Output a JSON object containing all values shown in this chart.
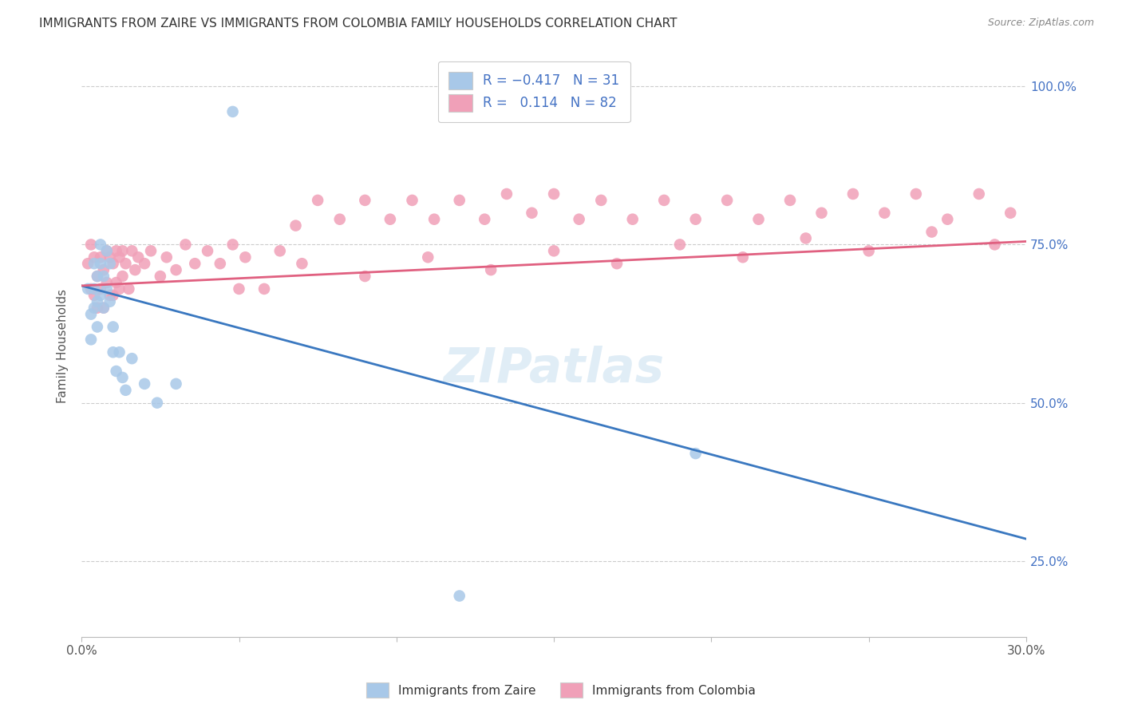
{
  "title": "IMMIGRANTS FROM ZAIRE VS IMMIGRANTS FROM COLOMBIA FAMILY HOUSEHOLDS CORRELATION CHART",
  "source": "Source: ZipAtlas.com",
  "ylabel": "Family Households",
  "yticks_labels": [
    "25.0%",
    "50.0%",
    "75.0%",
    "100.0%"
  ],
  "ytick_vals": [
    0.25,
    0.5,
    0.75,
    1.0
  ],
  "xlim": [
    0.0,
    0.3
  ],
  "ylim": [
    0.13,
    1.05
  ],
  "legend_label_blue": "Immigrants from Zaire",
  "legend_label_pink": "Immigrants from Colombia",
  "blue_color": "#A8C8E8",
  "pink_color": "#F0A0B8",
  "blue_line_color": "#3A78C0",
  "pink_line_color": "#E06080",
  "watermark": "ZIPatlas",
  "blue_line_x0": 0.0,
  "blue_line_y0": 0.685,
  "blue_line_x1": 0.3,
  "blue_line_y1": 0.285,
  "pink_line_x0": 0.0,
  "pink_line_y0": 0.685,
  "pink_line_x1": 0.3,
  "pink_line_y1": 0.755,
  "zaire_x": [
    0.002,
    0.003,
    0.003,
    0.004,
    0.004,
    0.004,
    0.005,
    0.005,
    0.005,
    0.006,
    0.006,
    0.006,
    0.007,
    0.007,
    0.008,
    0.008,
    0.009,
    0.009,
    0.01,
    0.01,
    0.011,
    0.012,
    0.013,
    0.014,
    0.016,
    0.02,
    0.024,
    0.03,
    0.048,
    0.195,
    0.12
  ],
  "zaire_y": [
    0.68,
    0.64,
    0.6,
    0.72,
    0.68,
    0.65,
    0.7,
    0.66,
    0.62,
    0.75,
    0.72,
    0.67,
    0.7,
    0.65,
    0.74,
    0.68,
    0.72,
    0.66,
    0.62,
    0.58,
    0.55,
    0.58,
    0.54,
    0.52,
    0.57,
    0.53,
    0.5,
    0.53,
    0.96,
    0.42,
    0.195
  ],
  "colombia_x": [
    0.002,
    0.003,
    0.003,
    0.004,
    0.004,
    0.005,
    0.005,
    0.006,
    0.006,
    0.007,
    0.007,
    0.008,
    0.008,
    0.009,
    0.009,
    0.01,
    0.01,
    0.011,
    0.011,
    0.012,
    0.012,
    0.013,
    0.013,
    0.014,
    0.015,
    0.016,
    0.017,
    0.018,
    0.02,
    0.022,
    0.025,
    0.027,
    0.03,
    0.033,
    0.036,
    0.04,
    0.044,
    0.048,
    0.052,
    0.058,
    0.063,
    0.068,
    0.075,
    0.082,
    0.09,
    0.098,
    0.105,
    0.112,
    0.12,
    0.128,
    0.135,
    0.143,
    0.15,
    0.158,
    0.165,
    0.175,
    0.185,
    0.195,
    0.205,
    0.215,
    0.225,
    0.235,
    0.245,
    0.255,
    0.265,
    0.275,
    0.285,
    0.295,
    0.05,
    0.07,
    0.09,
    0.11,
    0.13,
    0.15,
    0.17,
    0.19,
    0.21,
    0.23,
    0.25,
    0.27,
    0.29
  ],
  "colombia_y": [
    0.72,
    0.75,
    0.68,
    0.73,
    0.67,
    0.7,
    0.65,
    0.73,
    0.68,
    0.71,
    0.65,
    0.74,
    0.69,
    0.73,
    0.67,
    0.72,
    0.67,
    0.74,
    0.69,
    0.73,
    0.68,
    0.74,
    0.7,
    0.72,
    0.68,
    0.74,
    0.71,
    0.73,
    0.72,
    0.74,
    0.7,
    0.73,
    0.71,
    0.75,
    0.72,
    0.74,
    0.72,
    0.75,
    0.73,
    0.68,
    0.74,
    0.78,
    0.82,
    0.79,
    0.82,
    0.79,
    0.82,
    0.79,
    0.82,
    0.79,
    0.83,
    0.8,
    0.83,
    0.79,
    0.82,
    0.79,
    0.82,
    0.79,
    0.82,
    0.79,
    0.82,
    0.8,
    0.83,
    0.8,
    0.83,
    0.79,
    0.83,
    0.8,
    0.68,
    0.72,
    0.7,
    0.73,
    0.71,
    0.74,
    0.72,
    0.75,
    0.73,
    0.76,
    0.74,
    0.77,
    0.75
  ]
}
